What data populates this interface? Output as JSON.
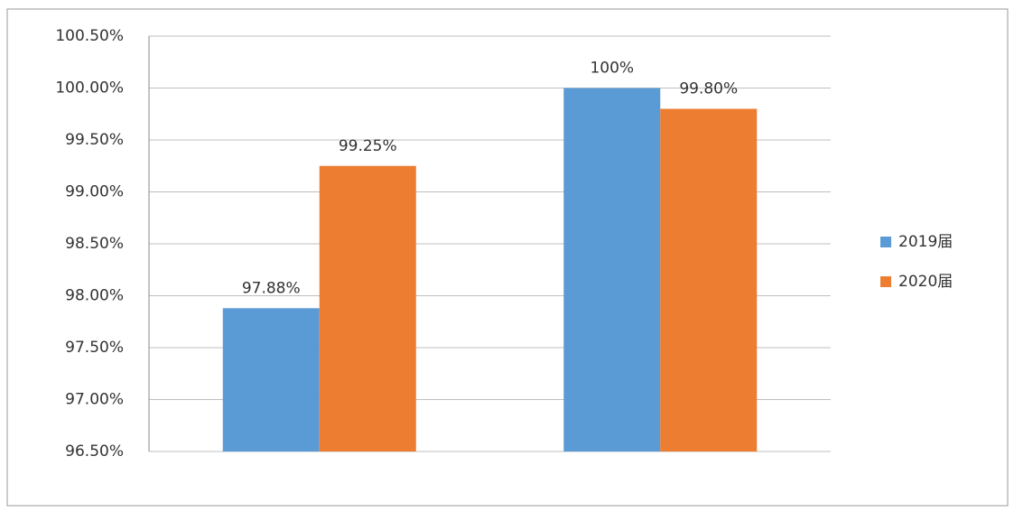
{
  "chart_data": {
    "type": "bar",
    "categories": [
      null,
      null
    ],
    "series": [
      {
        "name": "2019届",
        "color": "#5b9bd5",
        "values": [
          97.88,
          100
        ],
        "value_labels": [
          "97.88%",
          "100%"
        ]
      },
      {
        "name": "2020届",
        "color": "#ed7d31",
        "values": [
          99.25,
          99.8
        ],
        "value_labels": [
          "99.25%",
          "99.80%"
        ]
      }
    ],
    "ylim": [
      96.5,
      100.5
    ],
    "yticks": [
      {
        "value": 96.5,
        "label": "96.50%"
      },
      {
        "value": 97,
        "label": "97.00%"
      },
      {
        "value": 97.5,
        "label": "97.50%"
      },
      {
        "value": 98,
        "label": "98.00%"
      },
      {
        "value": 98.5,
        "label": "98.50%"
      },
      {
        "value": 99,
        "label": "99.00%"
      },
      {
        "value": 99.5,
        "label": "99.50%"
      },
      {
        "value": 100,
        "label": "100.00%"
      },
      {
        "value": 100.5,
        "label": "100.50%"
      }
    ],
    "grid": true,
    "legend": "right"
  }
}
